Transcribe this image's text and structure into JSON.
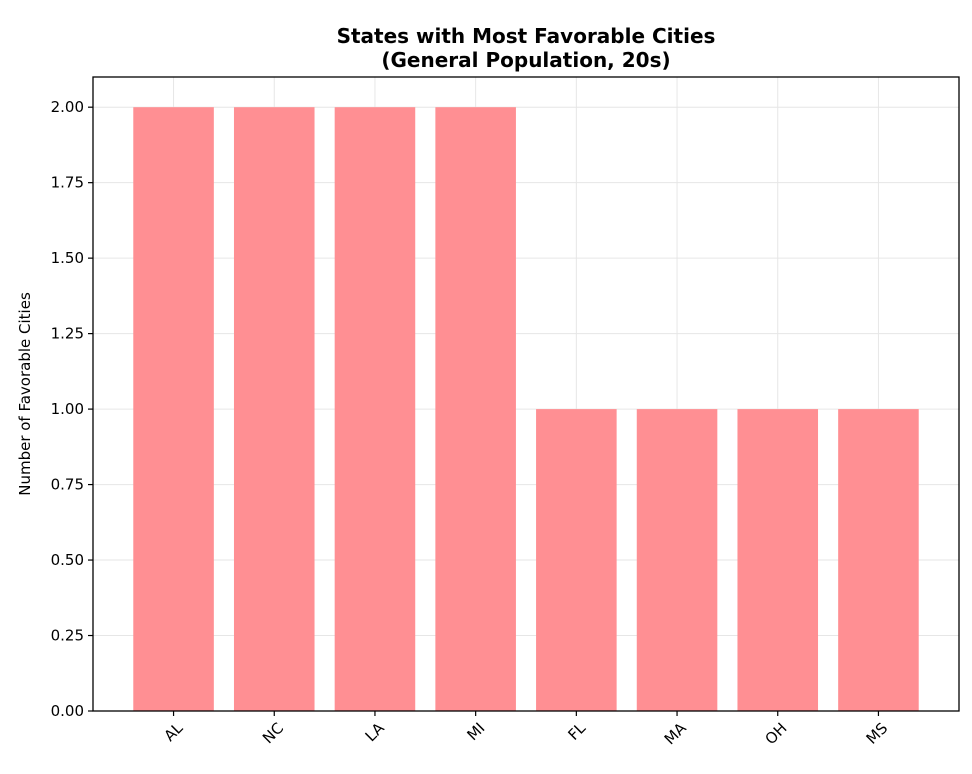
{
  "chart_data": {
    "type": "bar",
    "title": "States with Most Favorable Cities",
    "subtitle": "(General Population, 20s)",
    "xlabel": "",
    "ylabel": "Number of Favorable Cities",
    "categories": [
      "AL",
      "NC",
      "LA",
      "MI",
      "FL",
      "MA",
      "OH",
      "MS"
    ],
    "values": [
      2,
      2,
      2,
      2,
      1,
      1,
      1,
      1
    ],
    "ylim": [
      0,
      2.1
    ],
    "yticks": [
      "0.00",
      "0.25",
      "0.50",
      "0.75",
      "1.00",
      "1.25",
      "1.50",
      "1.75",
      "2.00"
    ],
    "grid": true,
    "legend": "none",
    "bar_color": "#ff8f93",
    "grid_color": "#e6e6e6"
  }
}
